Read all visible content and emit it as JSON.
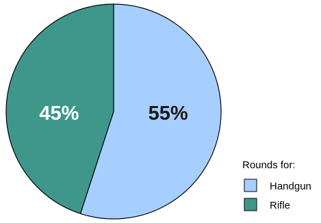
{
  "chart_data": {
    "type": "pie",
    "slices": [
      {
        "name": "Handgun",
        "value": 55,
        "label": "55%",
        "color": "#a6cfff",
        "label_color": "#1a1a1a"
      },
      {
        "name": "Rifle",
        "value": 45,
        "label": "45%",
        "color": "#3f978b",
        "label_color": "#ffffff"
      }
    ],
    "legend": {
      "title": "Rounds for:",
      "placement": "bottom-right"
    }
  }
}
